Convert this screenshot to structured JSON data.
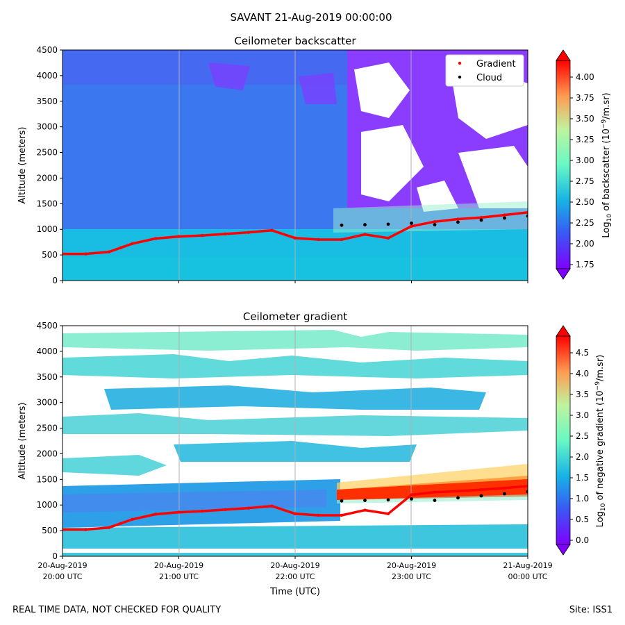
{
  "figure": {
    "suptitle": "SAVANT 21-Aug-2019 00:00:00",
    "footer_left": "REAL TIME DATA, NOT CHECKED FOR QUALITY",
    "footer_right": "Site: ISS1"
  },
  "colors": {
    "gradient_marker": "#ff0000",
    "cloud_marker": "#000000",
    "colormap": [
      "#7f00ff",
      "#3a58f4",
      "#16b4e5",
      "#68f9c4",
      "#c0f39e",
      "#ff9b51",
      "#ff0000"
    ]
  },
  "chart_data": [
    {
      "type": "heatmap",
      "title": "Ceilometer backscatter",
      "xlabel": "",
      "ylabel": "Altitude (meters)",
      "ylim": [
        0,
        4500
      ],
      "yticks": [
        "0",
        "500",
        "1000",
        "1500",
        "2000",
        "2500",
        "3000",
        "3500",
        "4000",
        "4500"
      ],
      "xticks": [
        "20:00",
        "21:00",
        "22:00",
        "23:00",
        "00:00"
      ],
      "xlim": [
        "2019-08-20 20:00 UTC",
        "2019-08-21 00:00 UTC"
      ],
      "grid": "vertical",
      "legend": {
        "placement": "top-right",
        "entries": [
          "Gradient",
          "Cloud"
        ]
      },
      "colorbar": {
        "label": "Log10 of backscatter (10^-9/m.sr)",
        "label_main": "Log",
        "label_sub": "10",
        "label_rest": " of backscatter (10",
        "label_sup": "−9",
        "label_end": "/m.sr)",
        "range": [
          1.7,
          4.2
        ],
        "ticks": [
          "1.75",
          "2.00",
          "2.25",
          "2.50",
          "2.75",
          "3.00",
          "3.25",
          "3.50",
          "3.75",
          "4.00"
        ]
      },
      "series": [
        {
          "name": "Gradient",
          "x_hours_after_2000": [
            0.0,
            0.2,
            0.4,
            0.5,
            0.6,
            0.8,
            1.0,
            1.2,
            1.4,
            1.6,
            1.8,
            2.0,
            2.2,
            2.4,
            2.6,
            2.8,
            3.0,
            3.2,
            3.4,
            3.6,
            3.8,
            4.0
          ],
          "y": [
            520,
            520,
            560,
            640,
            720,
            820,
            860,
            880,
            910,
            940,
            980,
            830,
            800,
            800,
            900,
            830,
            1060,
            1150,
            1200,
            1230,
            1280,
            1330
          ]
        },
        {
          "name": "Cloud",
          "x_hours_after_2000": [
            2.4,
            2.6,
            2.8,
            3.0,
            3.2,
            3.4,
            3.6,
            3.8,
            4.0
          ],
          "y": [
            1080,
            1090,
            1100,
            1120,
            1090,
            1140,
            1180,
            1220,
            1260
          ]
        }
      ]
    },
    {
      "type": "heatmap",
      "title": "Ceilometer gradient",
      "xlabel": "Time (UTC)",
      "ylabel": "Altitude (meters)",
      "ylim": [
        0,
        4500
      ],
      "yticks": [
        "0",
        "500",
        "1000",
        "1500",
        "2000",
        "2500",
        "3000",
        "3500",
        "4000",
        "4500"
      ],
      "xticks": [
        "20-Aug-2019\n20:00 UTC",
        "20-Aug-2019\n21:00 UTC",
        "20-Aug-2019\n22:00 UTC",
        "20-Aug-2019\n23:00 UTC",
        "21-Aug-2019\n00:00 UTC"
      ],
      "xtick_dates": [
        "20-Aug-2019",
        "20-Aug-2019",
        "20-Aug-2019",
        "20-Aug-2019",
        "21-Aug-2019"
      ],
      "xtick_times": [
        "20:00 UTC",
        "21:00 UTC",
        "22:00 UTC",
        "23:00 UTC",
        "00:00 UTC"
      ],
      "xlim": [
        "2019-08-20 20:00 UTC",
        "2019-08-21 00:00 UTC"
      ],
      "grid": "vertical",
      "colorbar": {
        "label": "Log10 of negative gradient (10^-9/m.sr)",
        "label_main": "Log",
        "label_sub": "10",
        "label_rest": " of negative gradient (10",
        "label_sup": "−9",
        "label_end": "/m.sr)",
        "range": [
          -0.1,
          4.9
        ],
        "ticks": [
          "0.0",
          "0.5",
          "1.0",
          "1.5",
          "2.0",
          "2.5",
          "3.0",
          "3.5",
          "4.0",
          "4.5"
        ]
      },
      "series": [
        {
          "name": "Gradient",
          "x_hours_after_2000": [
            0.0,
            0.2,
            0.4,
            0.5,
            0.6,
            0.8,
            1.0,
            1.2,
            1.4,
            1.6,
            1.8,
            2.0,
            2.2,
            2.4,
            2.6,
            2.8,
            3.0,
            3.2,
            3.4,
            3.6,
            3.8,
            4.0
          ],
          "y": [
            520,
            520,
            560,
            640,
            720,
            820,
            860,
            880,
            910,
            940,
            980,
            830,
            800,
            800,
            900,
            830,
            1200,
            1250,
            1270,
            1300,
            1330,
            1370
          ]
        },
        {
          "name": "Cloud",
          "x_hours_after_2000": [
            2.4,
            2.6,
            2.8,
            3.0,
            3.2,
            3.4,
            3.6,
            3.8,
            4.0
          ],
          "y": [
            1080,
            1090,
            1100,
            1120,
            1090,
            1140,
            1180,
            1220,
            1260
          ]
        }
      ]
    }
  ]
}
